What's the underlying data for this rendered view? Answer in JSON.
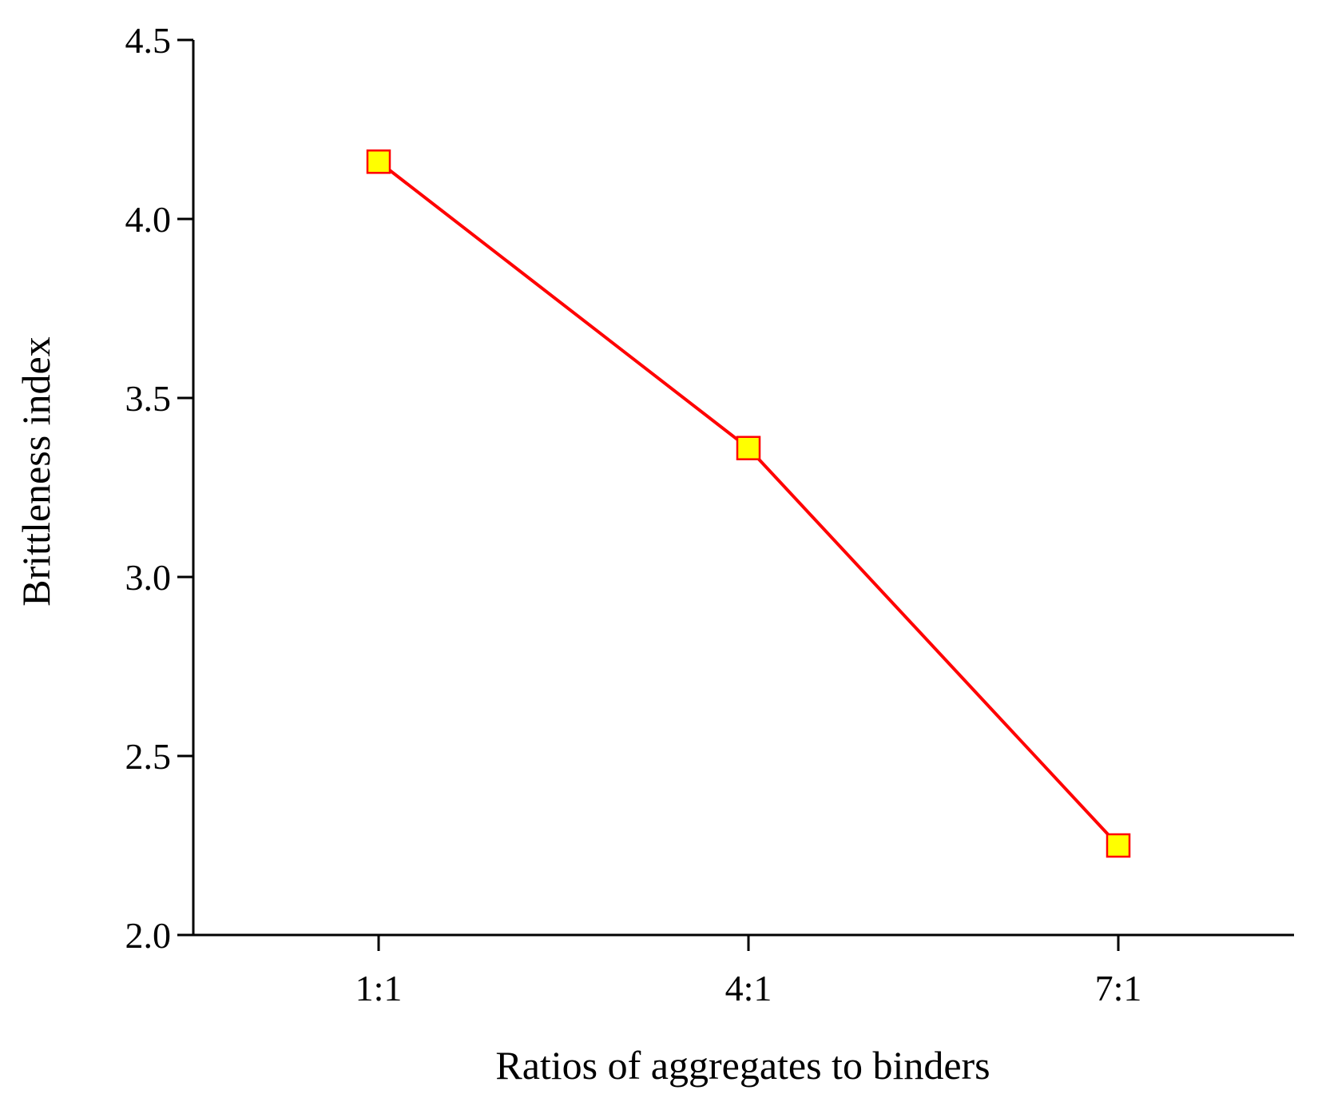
{
  "chart_data": {
    "type": "line",
    "categories": [
      "1:1",
      "4:1",
      "7:1"
    ],
    "series": [
      {
        "values": [
          4.16,
          3.36,
          2.25
        ]
      }
    ],
    "xlabel": "Ratios of aggregates to binders",
    "ylabel": "Brittleness index",
    "ylim": [
      2.0,
      4.5
    ],
    "yticks": [
      "2.0",
      "2.5",
      "3.0",
      "3.5",
      "4.0",
      "4.5"
    ],
    "grid": false,
    "line_color": "#ff0000",
    "marker": "square",
    "marker_fill": "#ffff00",
    "marker_edge": "#ff0000"
  }
}
